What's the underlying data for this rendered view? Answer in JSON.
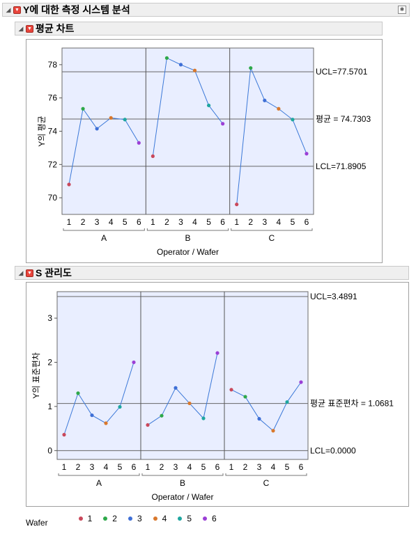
{
  "report": {
    "title": "Y에 대한 측정 시스템 분석",
    "sections": [
      {
        "title": "평균 차트"
      },
      {
        "title": "S 관리도"
      }
    ]
  },
  "colors": {
    "plot_bg": "#e9eeff",
    "line": "#3b78d8",
    "wafer": [
      "#c9485b",
      "#2ea84a",
      "#3e6fd6",
      "#d9782c",
      "#1fa6a0",
      "#9b3fd6"
    ]
  },
  "legend": {
    "title": "Wafer",
    "items": [
      "1",
      "2",
      "3",
      "4",
      "5",
      "6"
    ]
  },
  "chart_data": [
    {
      "type": "line",
      "title": "평균 차트",
      "xlabel": "Operator  /  Wafer",
      "ylabel": "Y의 평균",
      "groups": [
        "A",
        "B",
        "C"
      ],
      "x_ticks": [
        "1",
        "2",
        "3",
        "4",
        "5",
        "6"
      ],
      "ylim": [
        69,
        79
      ],
      "y_ticks": [
        70,
        72,
        74,
        76,
        78
      ],
      "series": [
        {
          "operator": "A",
          "values": [
            70.8,
            75.35,
            74.15,
            74.8,
            74.7,
            73.3
          ]
        },
        {
          "operator": "B",
          "values": [
            72.5,
            78.4,
            78.0,
            77.65,
            75.55,
            74.45
          ]
        },
        {
          "operator": "C",
          "values": [
            69.6,
            77.8,
            75.85,
            75.35,
            74.7,
            72.65
          ]
        }
      ],
      "limits": [
        {
          "value": 77.5701,
          "label": "UCL=77.5701"
        },
        {
          "value": 74.7303,
          "label": "평균 = 74.7303"
        },
        {
          "value": 71.8905,
          "label": "LCL=71.8905"
        }
      ]
    },
    {
      "type": "line",
      "title": "S 관리도",
      "xlabel": "Operator  /  Wafer",
      "ylabel": "Y의 표준편차",
      "groups": [
        "A",
        "B",
        "C"
      ],
      "x_ticks": [
        "1",
        "2",
        "3",
        "4",
        "5",
        "6"
      ],
      "ylim": [
        -0.2,
        3.6
      ],
      "y_ticks": [
        0,
        1,
        2,
        3
      ],
      "series": [
        {
          "operator": "A",
          "values": [
            0.36,
            1.3,
            0.8,
            0.62,
            0.99,
            2.0
          ]
        },
        {
          "operator": "B",
          "values": [
            0.58,
            0.79,
            1.42,
            1.07,
            0.73,
            2.21
          ]
        },
        {
          "operator": "C",
          "values": [
            1.38,
            1.22,
            0.72,
            0.45,
            1.1,
            1.55
          ]
        }
      ],
      "limits": [
        {
          "value": 3.4891,
          "label": "UCL=3.4891"
        },
        {
          "value": 1.0681,
          "label": "평균 표준편차 = 1.0681"
        },
        {
          "value": 0.0,
          "label": "LCL=0.0000"
        }
      ]
    }
  ]
}
